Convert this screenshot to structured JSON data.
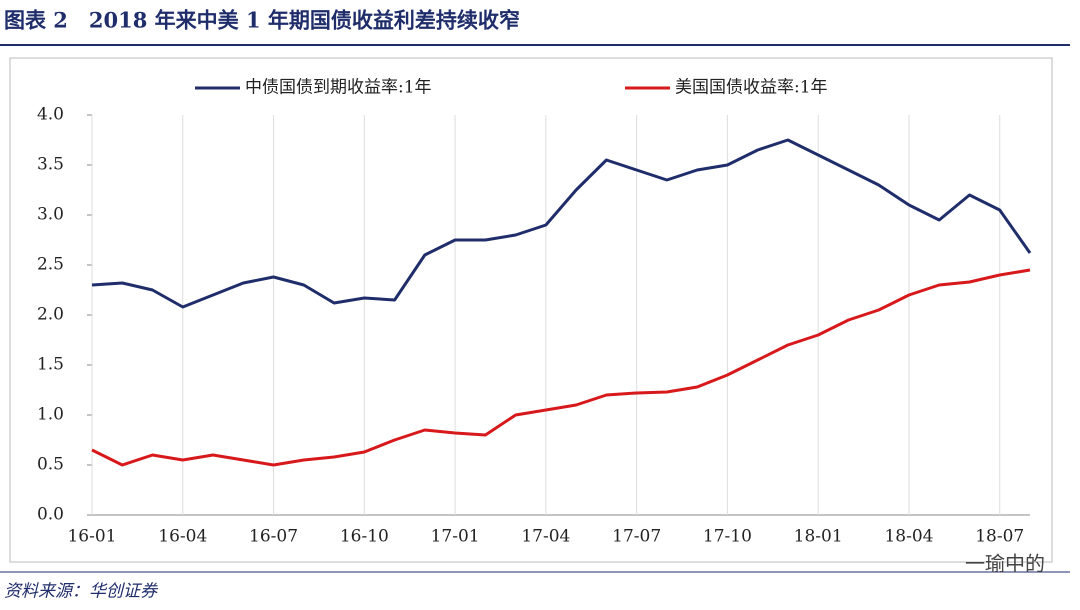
{
  "header": {
    "title": "图表 2　2018 年来中美 1 年期国债收益利差持续收窄"
  },
  "chart_data": {
    "type": "line",
    "categories": [
      "16-01",
      null,
      null,
      "16-04",
      null,
      null,
      "16-07",
      null,
      null,
      "16-10",
      null,
      null,
      "17-01",
      null,
      null,
      "17-04",
      null,
      null,
      "17-07",
      null,
      null,
      "17-10",
      null,
      null,
      "18-01",
      null,
      null,
      "18-04",
      null,
      null,
      "18-07",
      null
    ],
    "series": [
      {
        "name": "中债国债到期收益率:1年",
        "color": "#1f2d6b",
        "values": [
          2.3,
          2.32,
          2.25,
          2.08,
          2.2,
          2.32,
          2.38,
          2.3,
          2.12,
          2.17,
          2.15,
          2.6,
          2.75,
          2.75,
          2.8,
          2.9,
          3.25,
          3.55,
          3.45,
          3.35,
          3.45,
          3.5,
          3.65,
          3.75,
          3.6,
          3.45,
          3.3,
          3.1,
          2.95,
          3.2,
          3.05,
          2.62
        ]
      },
      {
        "name": "美国国债收益率:1年",
        "color": "#d7191c",
        "values": [
          0.65,
          0.5,
          0.6,
          0.55,
          0.6,
          0.55,
          0.5,
          0.55,
          0.58,
          0.63,
          0.75,
          0.85,
          0.82,
          0.8,
          1.0,
          1.05,
          1.1,
          1.2,
          1.22,
          1.23,
          1.28,
          1.4,
          1.55,
          1.7,
          1.8,
          1.95,
          2.05,
          2.2,
          2.3,
          2.33,
          2.4,
          2.45
        ]
      }
    ],
    "ylim": [
      0,
      4
    ],
    "yticks": [
      {
        "value": 0,
        "label": "0.0"
      },
      0.5,
      {
        "value": 1,
        "label": "1.0"
      },
      1.5,
      {
        "value": 2,
        "label": "2.0"
      },
      2.5,
      {
        "value": 3,
        "label": "3.0"
      },
      3.5,
      {
        "value": 4,
        "label": "4.0"
      }
    ],
    "grid": "x"
  },
  "footer": {
    "source": "资料来源：华创证券",
    "watermark": "一瑜中的"
  }
}
